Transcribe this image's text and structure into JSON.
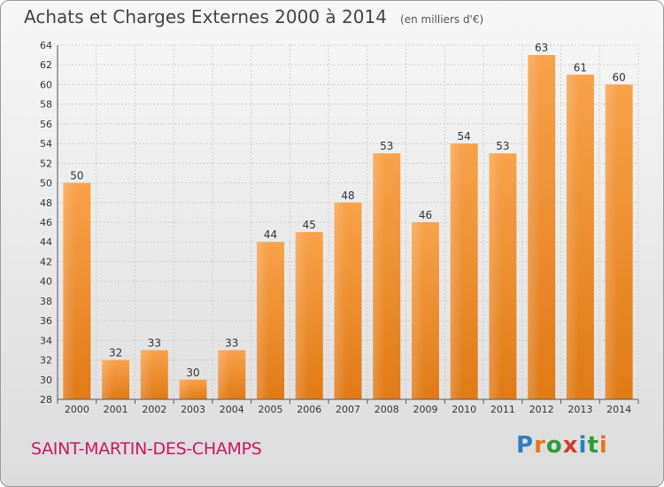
{
  "header": {
    "title": "Achats et Charges Externes 2000 à 2014",
    "unit": "(en milliers d'€)"
  },
  "footer": {
    "commune": "SAINT-MARTIN-DES-CHAMPS",
    "logo_letters": [
      "P",
      "r",
      "o",
      "x",
      "i",
      "t",
      "i"
    ],
    "logo_colors": [
      "#2e7fc2",
      "#e8741e",
      "#2e9a3a",
      "#d63a2e",
      "#2e7fc2",
      "#2e9a3a",
      "#e8741e"
    ]
  },
  "chart_data": {
    "type": "bar",
    "categories": [
      "2000",
      "2001",
      "2002",
      "2003",
      "2004",
      "2005",
      "2006",
      "2007",
      "2008",
      "2009",
      "2010",
      "2011",
      "2012",
      "2013",
      "2014"
    ],
    "values": [
      50,
      32,
      33,
      30,
      33,
      44,
      45,
      48,
      53,
      46,
      54,
      53,
      63,
      61,
      60
    ],
    "ylim": [
      28,
      64
    ],
    "yticks": [
      28,
      30,
      32,
      34,
      36,
      38,
      40,
      42,
      44,
      46,
      48,
      50,
      52,
      54,
      56,
      58,
      60,
      62,
      64
    ],
    "grid": true,
    "bar_color": "#f0922e"
  }
}
